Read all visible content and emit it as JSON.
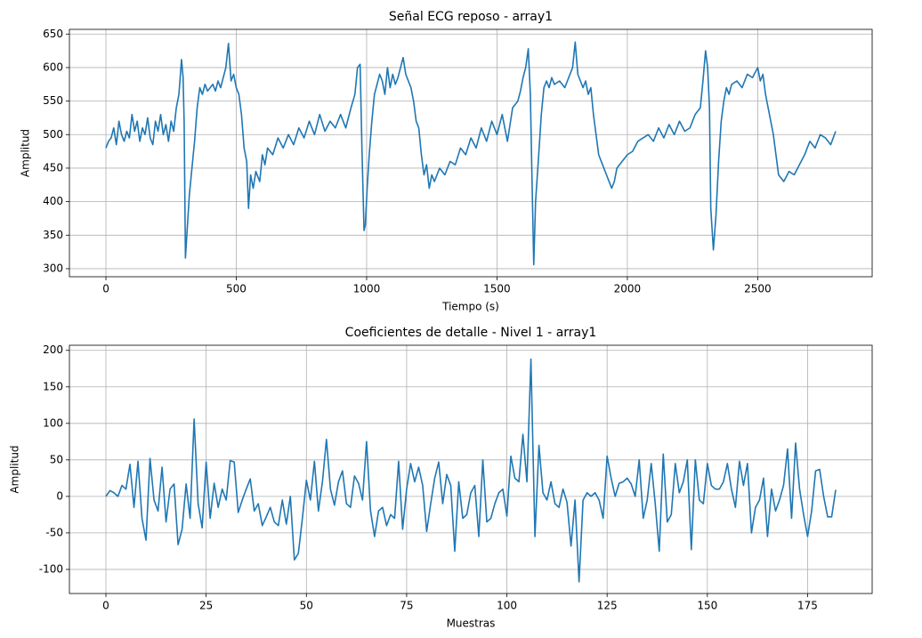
{
  "chart_data": [
    {
      "type": "line",
      "title": "Señal ECG reposo - array1",
      "x_label": "Tiempo (s)",
      "y_label": "Amplitud",
      "color": "#1f77b4",
      "grid": true,
      "xlim": [
        -140,
        2939
      ],
      "ylim": [
        288,
        657
      ],
      "xticks": [
        0,
        500,
        1000,
        1500,
        2000,
        2500
      ],
      "yticks": [
        300,
        350,
        400,
        450,
        500,
        550,
        600,
        650
      ],
      "x": [
        0,
        10,
        20,
        30,
        40,
        50,
        60,
        70,
        80,
        90,
        100,
        110,
        120,
        130,
        140,
        150,
        160,
        170,
        180,
        190,
        200,
        210,
        220,
        230,
        240,
        250,
        260,
        270,
        280,
        290,
        296,
        300,
        305,
        312,
        320,
        330,
        340,
        350,
        360,
        370,
        380,
        390,
        400,
        410,
        420,
        430,
        440,
        450,
        460,
        470,
        480,
        490,
        500,
        510,
        520,
        530,
        540,
        547,
        555,
        565,
        575,
        590,
        600,
        610,
        620,
        640,
        660,
        680,
        700,
        720,
        740,
        760,
        780,
        800,
        820,
        840,
        860,
        880,
        900,
        920,
        940,
        955,
        965,
        975,
        982,
        990,
        995,
        1002,
        1010,
        1020,
        1030,
        1040,
        1050,
        1060,
        1070,
        1080,
        1090,
        1100,
        1110,
        1120,
        1130,
        1140,
        1150,
        1160,
        1170,
        1180,
        1190,
        1200,
        1210,
        1220,
        1230,
        1240,
        1250,
        1260,
        1280,
        1300,
        1320,
        1340,
        1360,
        1380,
        1400,
        1420,
        1440,
        1460,
        1480,
        1500,
        1520,
        1540,
        1560,
        1580,
        1590,
        1600,
        1610,
        1620,
        1628,
        1635,
        1641,
        1648,
        1660,
        1670,
        1680,
        1690,
        1700,
        1710,
        1720,
        1740,
        1760,
        1780,
        1790,
        1800,
        1810,
        1820,
        1830,
        1840,
        1850,
        1860,
        1870,
        1880,
        1890,
        1900,
        1920,
        1940,
        1950,
        1960,
        1980,
        2000,
        2020,
        2040,
        2060,
        2080,
        2100,
        2120,
        2140,
        2160,
        2180,
        2200,
        2220,
        2240,
        2260,
        2280,
        2290,
        2300,
        2308,
        2315,
        2320,
        2330,
        2340,
        2350,
        2360,
        2370,
        2380,
        2390,
        2400,
        2420,
        2440,
        2460,
        2480,
        2500,
        2510,
        2520,
        2530,
        2540,
        2560,
        2570,
        2580,
        2600,
        2620,
        2640,
        2660,
        2680,
        2700,
        2720,
        2740,
        2760,
        2780,
        2799
      ],
      "values": [
        480,
        490,
        495,
        510,
        485,
        520,
        500,
        490,
        505,
        495,
        530,
        505,
        520,
        490,
        510,
        500,
        525,
        495,
        485,
        520,
        505,
        530,
        500,
        515,
        490,
        520,
        505,
        540,
        560,
        612,
        585,
        520,
        316,
        360,
        410,
        450,
        490,
        540,
        570,
        560,
        575,
        565,
        570,
        575,
        565,
        580,
        570,
        585,
        600,
        636,
        580,
        590,
        570,
        560,
        530,
        480,
        460,
        390,
        440,
        420,
        445,
        430,
        470,
        455,
        480,
        470,
        495,
        480,
        500,
        485,
        510,
        495,
        520,
        500,
        530,
        505,
        520,
        510,
        530,
        510,
        540,
        560,
        600,
        605,
        480,
        357,
        365,
        420,
        470,
        520,
        560,
        575,
        590,
        580,
        560,
        600,
        570,
        590,
        575,
        585,
        600,
        615,
        590,
        580,
        570,
        550,
        520,
        510,
        470,
        440,
        455,
        420,
        440,
        430,
        450,
        440,
        460,
        455,
        480,
        470,
        495,
        480,
        510,
        490,
        520,
        500,
        530,
        490,
        540,
        550,
        565,
        585,
        600,
        628,
        560,
        420,
        306,
        400,
        470,
        530,
        570,
        580,
        570,
        585,
        575,
        580,
        570,
        590,
        600,
        638,
        590,
        580,
        570,
        580,
        560,
        570,
        530,
        500,
        470,
        460,
        440,
        420,
        430,
        450,
        460,
        470,
        475,
        490,
        495,
        500,
        490,
        510,
        495,
        515,
        500,
        520,
        505,
        510,
        530,
        540,
        580,
        625,
        600,
        540,
        390,
        328,
        380,
        460,
        520,
        550,
        570,
        560,
        575,
        580,
        570,
        590,
        585,
        600,
        580,
        590,
        560,
        540,
        500,
        470,
        440,
        430,
        445,
        440,
        455,
        470,
        490,
        480,
        500,
        495,
        485,
        505
      ]
    },
    {
      "type": "line",
      "title": "Coeficientes de detalle - Nivel 1 - array1",
      "x_label": "Muestras",
      "y_label": "Amplitud",
      "color": "#1f77b4",
      "grid": true,
      "xlim": [
        -9.1,
        191.1
      ],
      "ylim": [
        -133,
        207
      ],
      "xticks": [
        0,
        25,
        50,
        75,
        100,
        125,
        150,
        175
      ],
      "yticks": [
        -100,
        -50,
        0,
        50,
        100,
        150,
        200
      ],
      "x": [
        0,
        1,
        2,
        3,
        4,
        5,
        6,
        7,
        8,
        9,
        10,
        11,
        12,
        13,
        14,
        15,
        16,
        17,
        18,
        19,
        20,
        21,
        22,
        23,
        24,
        25,
        26,
        27,
        28,
        29,
        30,
        31,
        32,
        33,
        34,
        35,
        36,
        37,
        38,
        39,
        40,
        41,
        42,
        43,
        44,
        45,
        46,
        47,
        48,
        49,
        50,
        51,
        52,
        53,
        54,
        55,
        56,
        57,
        58,
        59,
        60,
        61,
        62,
        63,
        64,
        65,
        66,
        67,
        68,
        69,
        70,
        71,
        72,
        73,
        74,
        75,
        76,
        77,
        78,
        79,
        80,
        81,
        82,
        83,
        84,
        85,
        86,
        87,
        88,
        89,
        90,
        91,
        92,
        93,
        94,
        95,
        96,
        97,
        98,
        99,
        100,
        101,
        102,
        103,
        104,
        105,
        106,
        107,
        108,
        109,
        110,
        111,
        112,
        113,
        114,
        115,
        116,
        117,
        118,
        119,
        120,
        121,
        122,
        123,
        124,
        125,
        126,
        127,
        128,
        129,
        130,
        131,
        132,
        133,
        134,
        135,
        136,
        137,
        138,
        139,
        140,
        141,
        142,
        143,
        144,
        145,
        146,
        147,
        148,
        149,
        150,
        151,
        152,
        153,
        154,
        155,
        156,
        157,
        158,
        159,
        160,
        161,
        162,
        163,
        164,
        165,
        166,
        167,
        168,
        169,
        170,
        171,
        172,
        173,
        174,
        175,
        176,
        177,
        178,
        179,
        180,
        181,
        182
      ],
      "values": [
        0,
        8,
        5,
        0,
        15,
        10,
        44,
        -15,
        48,
        -30,
        -60,
        52,
        -5,
        -20,
        40,
        -35,
        10,
        17,
        -66,
        -45,
        17,
        -30,
        106,
        -10,
        -43,
        47,
        -30,
        18,
        -15,
        10,
        -5,
        49,
        47,
        -22,
        -5,
        10,
        24,
        -20,
        -10,
        -40,
        -28,
        -15,
        -35,
        -40,
        -5,
        -38,
        0,
        -87,
        -78,
        -30,
        22,
        -5,
        48,
        -20,
        20,
        78,
        10,
        -12,
        20,
        35,
        -10,
        -15,
        28,
        18,
        -5,
        75,
        -20,
        -55,
        -20,
        -15,
        -40,
        -25,
        -30,
        48,
        -45,
        10,
        45,
        20,
        40,
        15,
        -48,
        -10,
        25,
        47,
        -10,
        30,
        15,
        -75,
        20,
        -30,
        -25,
        5,
        15,
        -55,
        50,
        -35,
        -30,
        -10,
        5,
        10,
        -27,
        55,
        25,
        20,
        85,
        20,
        188,
        -55,
        70,
        5,
        -5,
        20,
        -10,
        -15,
        10,
        -8,
        -68,
        -5,
        -117,
        -5,
        5,
        0,
        5,
        -5,
        -30,
        55,
        25,
        0,
        18,
        20,
        25,
        17,
        0,
        50,
        -30,
        -5,
        45,
        -10,
        -75,
        58,
        -35,
        -25,
        45,
        5,
        20,
        50,
        -73,
        50,
        -5,
        -10,
        45,
        15,
        10,
        10,
        20,
        45,
        10,
        -15,
        48,
        15,
        45,
        -50,
        -15,
        -5,
        25,
        -55,
        10,
        -20,
        -5,
        15,
        65,
        -30,
        73,
        10,
        -25,
        -55,
        -20,
        35,
        37,
        0,
        -28,
        -28,
        9
      ]
    }
  ]
}
